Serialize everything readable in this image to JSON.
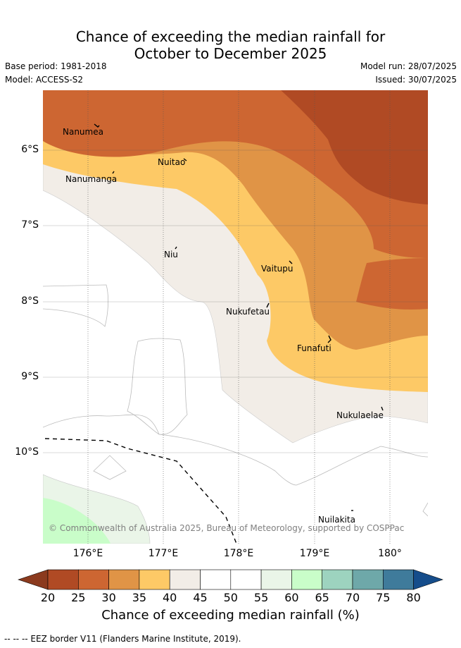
{
  "title_line1": "Chance of exceeding the median rainfall for",
  "title_line2": "October to December 2025",
  "base_period": "Base period: 1981-2018",
  "model": "Model: ACCESS-S2",
  "model_run": "Model run: 28/07/2025",
  "issued": "Issued: 30/07/2025",
  "copyright": "© Commonwealth of Australia 2025, Bureau of Meteorology, supported by COSPPac",
  "lat_labels": [
    "6°S",
    "7°S",
    "8°S",
    "9°S",
    "10°S"
  ],
  "lon_labels": [
    "176°E",
    "177°E",
    "178°E",
    "179°E",
    "180°"
  ],
  "places": [
    "Nanumea",
    "Nuitao",
    "Nanumanga",
    "Niu",
    "Vaitupu",
    "Nukufetau",
    "Funafuti",
    "Nukulaelae",
    "Nuilakita"
  ],
  "colorbar": {
    "title": "Chance of exceeding median rainfall (%)",
    "ticks": [
      "20",
      "25",
      "30",
      "35",
      "40",
      "45",
      "50",
      "55",
      "60",
      "65",
      "70",
      "75",
      "80"
    ],
    "colors": [
      "#8b3a1e",
      "#b04a24",
      "#cd6632",
      "#e09446",
      "#fdc966",
      "#f2ede7",
      "#ffffff",
      "#ffffff",
      "#eaf5e8",
      "#c9fdc9",
      "#9dd3bf",
      "#6ea8a9",
      "#3f7b9b",
      "#154d8b"
    ]
  },
  "footer": "--  --  -- EEZ border V11 (Flanders Marine Institute, 2019)."
}
